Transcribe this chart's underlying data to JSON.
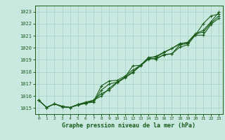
{
  "title": "Graphe pression niveau de la mer (hPa)",
  "x_ticks": [
    0,
    1,
    2,
    3,
    4,
    5,
    6,
    7,
    8,
    9,
    10,
    11,
    12,
    13,
    14,
    15,
    16,
    17,
    18,
    19,
    20,
    21,
    22,
    23
  ],
  "xlim": [
    -0.5,
    23.5
  ],
  "ylim": [
    1014.5,
    1023.5
  ],
  "y_ticks": [
    1015,
    1016,
    1017,
    1018,
    1019,
    1020,
    1021,
    1022,
    1023
  ],
  "bg_color": "#c8e8e0",
  "grid_color": "#aad4cc",
  "line_color": "#1a5c1a",
  "series": [
    [
      1015.65,
      1015.05,
      1015.35,
      1015.1,
      1015.05,
      1015.25,
      1015.4,
      1015.5,
      1016.5,
      1017.0,
      1017.15,
      1017.55,
      1018.5,
      1018.55,
      1019.15,
      1019.05,
      1019.45,
      1019.5,
      1020.25,
      1020.35,
      1021.05,
      1022.0,
      1022.65,
      1022.8
    ],
    [
      1015.65,
      1015.05,
      1015.35,
      1015.1,
      1015.05,
      1015.25,
      1015.4,
      1015.65,
      1016.2,
      1016.5,
      1017.1,
      1017.5,
      1017.95,
      1018.5,
      1019.05,
      1019.15,
      1019.4,
      1019.5,
      1020.05,
      1020.25,
      1021.05,
      1021.05,
      1021.95,
      1022.45
    ],
    [
      1015.65,
      1015.05,
      1015.35,
      1015.15,
      1015.05,
      1015.3,
      1015.45,
      1015.55,
      1016.85,
      1017.25,
      1017.3,
      1017.65,
      1018.15,
      1018.55,
      1019.2,
      1019.25,
      1019.6,
      1019.95,
      1020.35,
      1020.45,
      1021.15,
      1021.45,
      1022.15,
      1022.95
    ],
    [
      1015.65,
      1015.05,
      1015.35,
      1015.15,
      1015.05,
      1015.3,
      1015.5,
      1015.65,
      1016.0,
      1016.65,
      1017.15,
      1017.55,
      1018.0,
      1018.55,
      1019.15,
      1019.3,
      1019.65,
      1019.95,
      1020.3,
      1020.45,
      1021.15,
      1021.3,
      1022.05,
      1022.65
    ]
  ]
}
